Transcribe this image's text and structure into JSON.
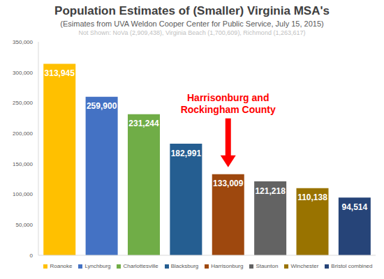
{
  "chart_data": {
    "type": "bar",
    "title": "Population Estimates of (Smaller) Virginia MSA's",
    "subtitle": "(Esimates from UVA Weldon Cooper Center for Public Service, July 15, 2015)",
    "note": "Not Shown: NoVa (2,909,438), Virginia Beach (1,700,609), Richmond (1,263,617)",
    "categories": [
      "Roanoke",
      "Lynchburg",
      "Charlottesville",
      "Blacksburg",
      "Harrisonburg",
      "Staunton",
      "Winchester",
      "Bristol combined"
    ],
    "values": [
      313945,
      259900,
      231244,
      182991,
      133009,
      121218,
      110138,
      94514
    ],
    "value_labels": [
      "313,945",
      "259,900",
      "231,244",
      "182,991",
      "133,009",
      "121,218",
      "110,138",
      "94,514"
    ],
    "colors": [
      "#ffc000",
      "#4472c4",
      "#70ad47",
      "#255e91",
      "#9e480e",
      "#636363",
      "#997300",
      "#264478"
    ],
    "ylim": [
      0,
      350000
    ],
    "yticks": [
      0,
      {
        "value": 50000,
        "label": "50,000"
      },
      {
        "value": 100000,
        "label": "100,000"
      },
      {
        "value": 150000,
        "label": "150,000"
      },
      {
        "value": 200000,
        "label": "200,000"
      },
      {
        "value": 250000,
        "label": "250,000"
      },
      {
        "value": 300000,
        "label": "300,000"
      },
      {
        "value": 350000,
        "label": "350,000"
      }
    ],
    "grid": false,
    "legend": "bottom",
    "data_labels": true,
    "annotations": [
      {
        "lines": [
          "Harrisonburg and",
          "Rockingham County"
        ],
        "category": "Harrisonburg",
        "color": "#ff0000"
      }
    ]
  }
}
